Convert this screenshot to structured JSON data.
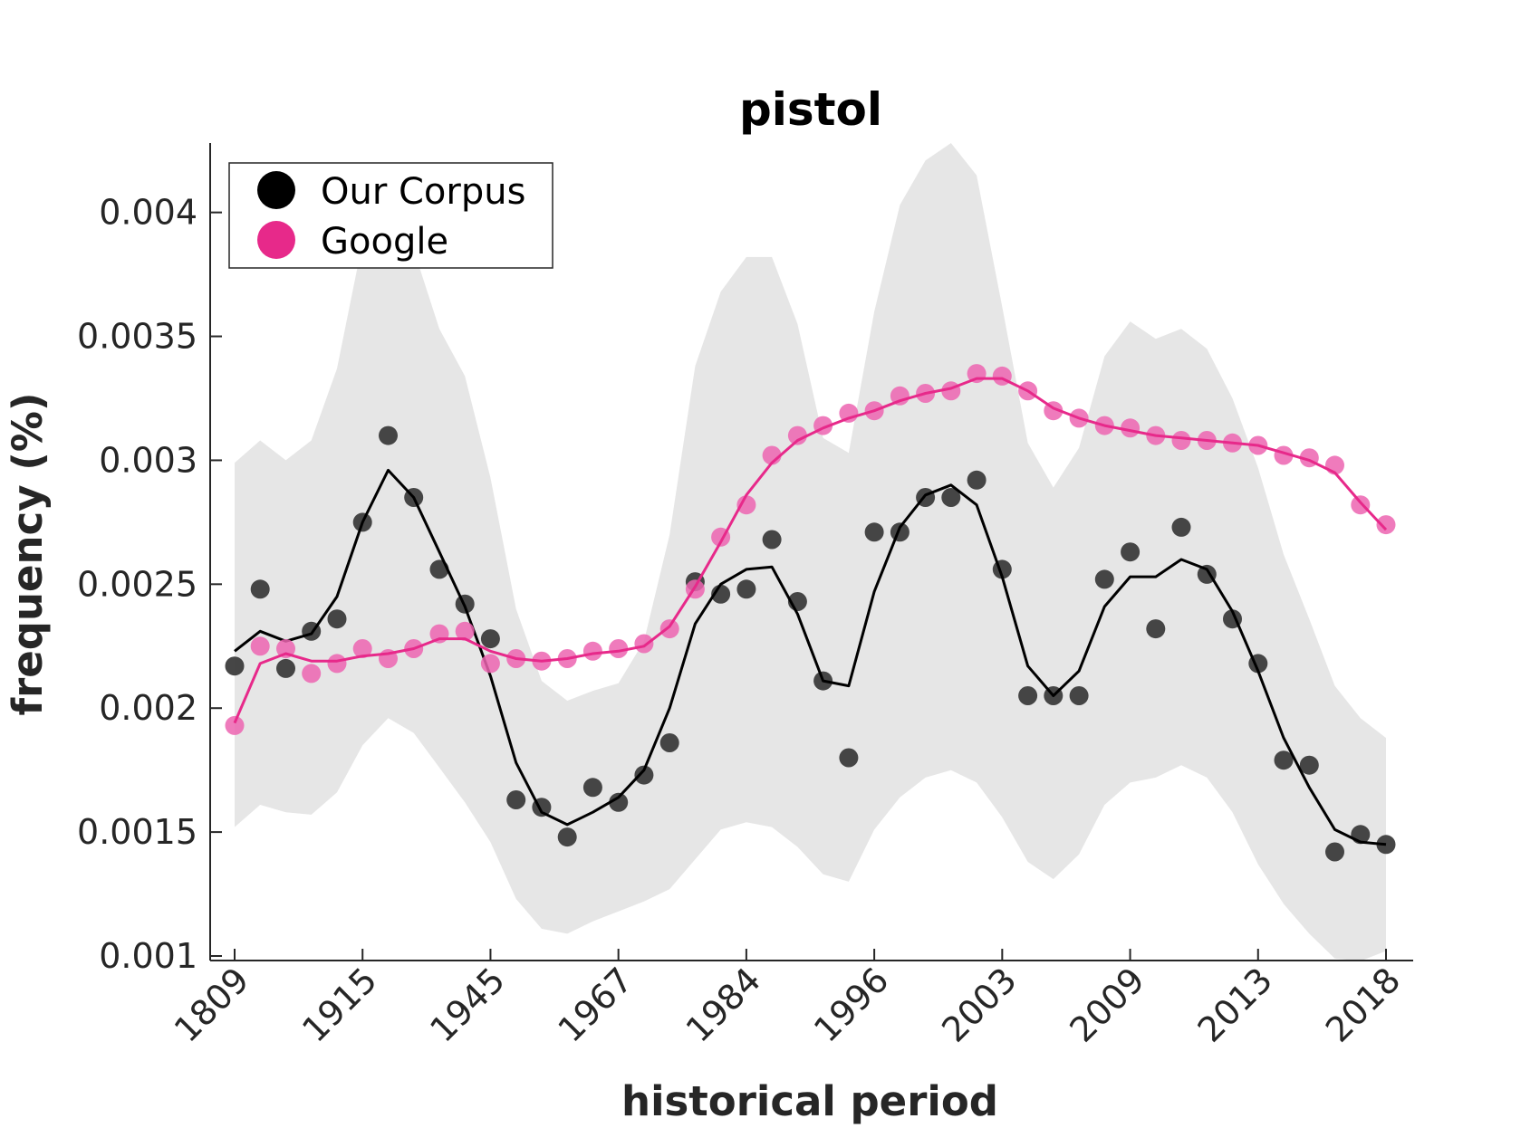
{
  "chart_data": {
    "type": "line",
    "title": "pistol",
    "xlabel": "historical period",
    "ylabel": "frequency (%)",
    "ylim": [
      0.001,
      0.00428
    ],
    "yticks": [
      {
        "value": 0.001,
        "label": "0.001"
      },
      {
        "value": 0.0015,
        "label": "0.0015"
      },
      {
        "value": 0.002,
        "label": "0.002"
      },
      {
        "value": 0.0025,
        "label": "0.0025"
      },
      {
        "value": 0.003,
        "label": "0.003"
      },
      {
        "value": 0.0035,
        "label": "0.0035"
      },
      {
        "value": 0.004,
        "label": "0.004"
      }
    ],
    "x_range": [
      0,
      46
    ],
    "xticks": [
      {
        "index": 0,
        "label": "1809"
      },
      {
        "index": 5,
        "label": "1915"
      },
      {
        "index": 10,
        "label": "1945"
      },
      {
        "index": 15,
        "label": "1967"
      },
      {
        "index": 20,
        "label": "1984"
      },
      {
        "index": 25,
        "label": "1996"
      },
      {
        "index": 30,
        "label": "2003"
      },
      {
        "index": 35,
        "label": "2009"
      },
      {
        "index": 40,
        "label": "2013"
      },
      {
        "index": 45,
        "label": "2018"
      }
    ],
    "grid": false,
    "legend_position": "top-left",
    "band": {
      "color": "#e6e6e6",
      "upper": [
        0.00299,
        0.00308,
        0.003,
        0.00308,
        0.00337,
        0.00388,
        0.00398,
        0.00385,
        0.00353,
        0.00334,
        0.00293,
        0.0024,
        0.00211,
        0.00203,
        0.00207,
        0.0021,
        0.00227,
        0.0027,
        0.00338,
        0.00368,
        0.00382,
        0.00382,
        0.00355,
        0.00309,
        0.00303,
        0.0036,
        0.00403,
        0.00421,
        0.00428,
        0.00415,
        0.00362,
        0.00307,
        0.00289,
        0.00305,
        0.00342,
        0.00356,
        0.00349,
        0.00353,
        0.00345,
        0.00325,
        0.00297,
        0.00262,
        0.00236,
        0.00209,
        0.00196,
        0.00188
      ],
      "lower": [
        0.00152,
        0.00161,
        0.00158,
        0.00157,
        0.00166,
        0.00185,
        0.00196,
        0.0019,
        0.00176,
        0.00162,
        0.00146,
        0.00123,
        0.00111,
        0.00109,
        0.00114,
        0.00118,
        0.00122,
        0.00127,
        0.00139,
        0.00151,
        0.00154,
        0.00152,
        0.00144,
        0.00133,
        0.0013,
        0.00151,
        0.00164,
        0.00172,
        0.00175,
        0.0017,
        0.00156,
        0.00138,
        0.00131,
        0.00141,
        0.00161,
        0.0017,
        0.00172,
        0.00177,
        0.00172,
        0.00158,
        0.00137,
        0.00121,
        0.00109,
        0.00099,
        0.00098,
        0.00102
      ]
    },
    "series": [
      {
        "name": "Our Corpus",
        "marker_color": "#3c3c3c",
        "legend_color": "#000000",
        "line_color": "#000000",
        "points": [
          0.00217,
          0.00248,
          0.00216,
          0.00231,
          0.00236,
          0.00275,
          0.0031,
          0.00285,
          0.00256,
          0.00242,
          0.00228,
          0.00163,
          0.0016,
          0.00148,
          0.00168,
          0.00162,
          0.00173,
          0.00186,
          0.00251,
          0.00246,
          0.00248,
          0.00268,
          0.00243,
          0.00211,
          0.0018,
          0.00271,
          0.00271,
          0.00285,
          0.00285,
          0.00292,
          0.00256,
          0.00205,
          0.00205,
          0.00205,
          0.00252,
          0.00263,
          0.00232,
          0.00273,
          0.00254,
          0.00236,
          0.00218,
          0.00179,
          0.00177,
          0.00142,
          0.00149,
          0.00145
        ],
        "smooth": [
          0.00223,
          0.00231,
          0.00227,
          0.0023,
          0.00245,
          0.00275,
          0.00296,
          0.00285,
          0.00263,
          0.00241,
          0.00213,
          0.00178,
          0.00158,
          0.00153,
          0.00158,
          0.00164,
          0.00175,
          0.002,
          0.00234,
          0.0025,
          0.00256,
          0.00257,
          0.00238,
          0.00211,
          0.00209,
          0.00247,
          0.00273,
          0.00286,
          0.0029,
          0.00282,
          0.00253,
          0.00217,
          0.00205,
          0.00215,
          0.00241,
          0.00253,
          0.00253,
          0.0026,
          0.00256,
          0.00239,
          0.00215,
          0.00188,
          0.00168,
          0.00151,
          0.00146,
          0.00145
        ]
      },
      {
        "name": "Google",
        "marker_color": "#ec64b0",
        "legend_color": "#e7298a",
        "line_color": "#e7298a",
        "points": [
          0.00193,
          0.00225,
          0.00224,
          0.00214,
          0.00218,
          0.00224,
          0.0022,
          0.00224,
          0.0023,
          0.00231,
          0.00218,
          0.0022,
          0.00219,
          0.0022,
          0.00223,
          0.00224,
          0.00226,
          0.00232,
          0.00248,
          0.00269,
          0.00282,
          0.00302,
          0.0031,
          0.00314,
          0.00319,
          0.0032,
          0.00326,
          0.00327,
          0.00328,
          0.00335,
          0.00334,
          0.00328,
          0.0032,
          0.00317,
          0.00314,
          0.00313,
          0.0031,
          0.00308,
          0.00308,
          0.00307,
          0.00306,
          0.00302,
          0.00301,
          0.00298,
          0.00282,
          0.00274
        ],
        "smooth": [
          0.00194,
          0.00218,
          0.00222,
          0.00219,
          0.00219,
          0.00221,
          0.00222,
          0.00224,
          0.00228,
          0.00228,
          0.00223,
          0.0022,
          0.00219,
          0.0022,
          0.00222,
          0.00223,
          0.00225,
          0.00233,
          0.00249,
          0.00267,
          0.00286,
          0.00299,
          0.00308,
          0.00313,
          0.00317,
          0.0032,
          0.00324,
          0.00327,
          0.00329,
          0.00333,
          0.00333,
          0.00328,
          0.00321,
          0.00317,
          0.00314,
          0.00312,
          0.0031,
          0.00309,
          0.00308,
          0.00307,
          0.00306,
          0.00303,
          0.003,
          0.00295,
          0.00283,
          0.00272
        ]
      }
    ]
  }
}
